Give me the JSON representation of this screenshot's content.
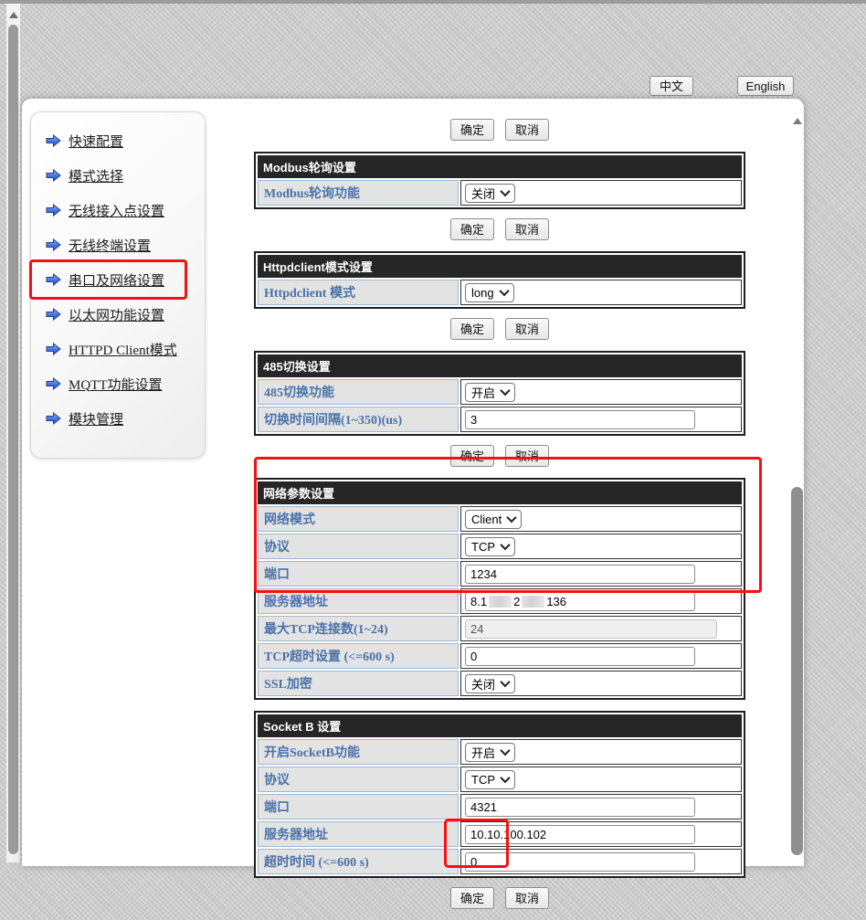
{
  "header": {
    "lang_zh": "中文",
    "lang_en": "English"
  },
  "sidebar": {
    "items": [
      {
        "label": "快速配置",
        "highlighted": false
      },
      {
        "label": "模式选择",
        "highlighted": false
      },
      {
        "label": "无线接入点设置",
        "highlighted": false
      },
      {
        "label": "无线终端设置",
        "highlighted": false
      },
      {
        "label": "串口及网络设置",
        "highlighted": true
      },
      {
        "label": "以太网功能设置",
        "highlighted": false
      },
      {
        "label": "HTTPD Client模式",
        "highlighted": false
      },
      {
        "label": "MQTT功能设置",
        "highlighted": false
      },
      {
        "label": "模块管理",
        "highlighted": false
      }
    ]
  },
  "actions": {
    "ok": "确定",
    "cancel": "取消"
  },
  "sections": [
    {
      "id": "modbus",
      "title": "Modbus轮询设置",
      "buttons_after": true,
      "rows": [
        {
          "label": "Modbus轮询功能",
          "control": "select",
          "value": "关闭"
        }
      ]
    },
    {
      "id": "httpdclient",
      "title": "Httpdclient模式设置",
      "buttons_after": true,
      "rows": [
        {
          "label": "Httpdclient 模式",
          "control": "select",
          "value": "long"
        }
      ]
    },
    {
      "id": "rs485",
      "title": "485切换设置",
      "buttons_after": true,
      "rows": [
        {
          "label": "485切换功能",
          "control": "select",
          "value": "开启"
        },
        {
          "label": "切换时间间隔(1~350)(us)",
          "control": "input",
          "value": "3"
        }
      ]
    },
    {
      "id": "network",
      "title": "网络参数设置",
      "buttons_after": false,
      "rows": [
        {
          "label": "网络模式",
          "control": "select",
          "value": "Client"
        },
        {
          "label": "协议",
          "control": "select",
          "value": "TCP"
        },
        {
          "label": "端口",
          "control": "input",
          "value": "1234"
        },
        {
          "label": "服务器地址",
          "control": "redacted",
          "fragments": [
            "8.1",
            "2",
            "136"
          ]
        },
        {
          "label": "最大TCP连接数(1~24)",
          "control": "input",
          "value": "24",
          "disabled": true
        },
        {
          "label": "TCP超时设置 (<=600 s)",
          "control": "input",
          "value": "0"
        },
        {
          "label": "SSL加密",
          "control": "select",
          "value": "关闭"
        }
      ]
    },
    {
      "id": "socketb",
      "title": "Socket B 设置",
      "buttons_after": true,
      "rows": [
        {
          "label": "开启SocketB功能",
          "control": "select",
          "value": "开启"
        },
        {
          "label": "协议",
          "control": "select",
          "value": "TCP"
        },
        {
          "label": "端口",
          "control": "input",
          "value": "4321"
        },
        {
          "label": "服务器地址",
          "control": "input",
          "value": "10.10.100.102"
        },
        {
          "label": "超时时间 (<=600 s)",
          "control": "input",
          "value": "0"
        }
      ]
    }
  ],
  "colors": {
    "annotation_red": "#f51111",
    "section_header_bg": "#262626",
    "label_text": "#4a72a8",
    "label_bg": "#e3e3e3",
    "arrow_icon_blue": "#3f6fd1"
  }
}
